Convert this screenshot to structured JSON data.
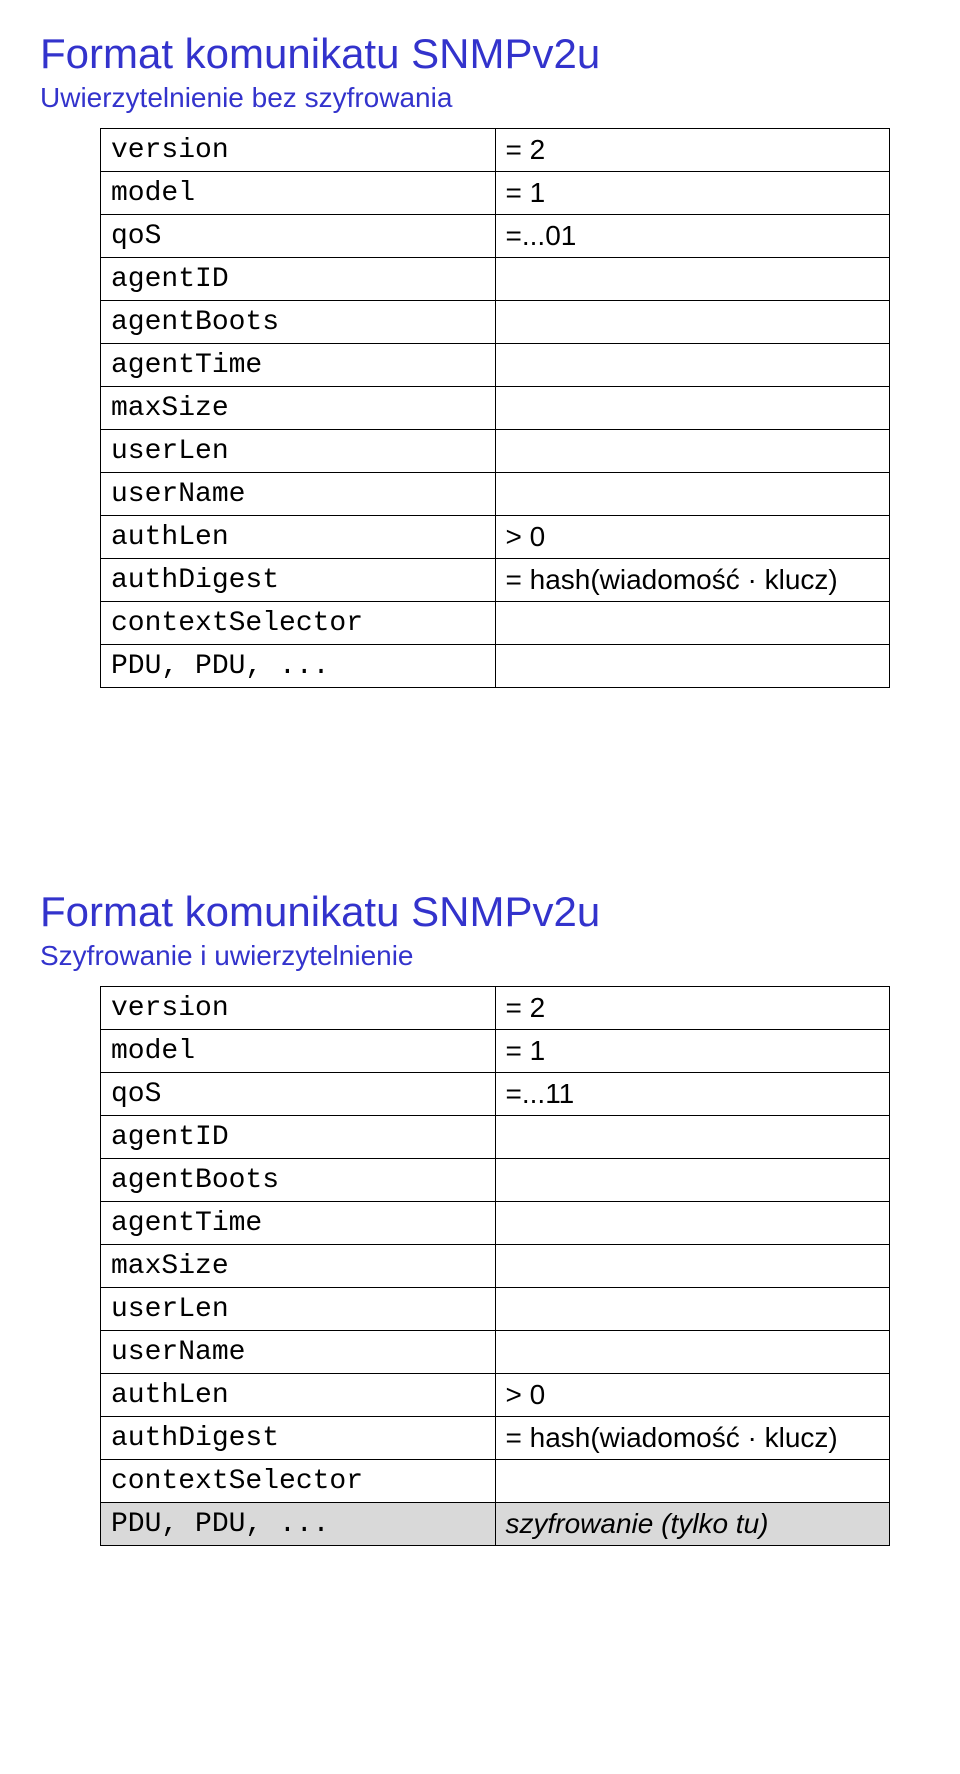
{
  "section1": {
    "title": "Format komunikatu SNMPv2u",
    "subtitle": "Uwierzytelnienie bez szyfrowania",
    "rows": [
      {
        "field": "version",
        "value": "= 2"
      },
      {
        "field": "model",
        "value": "= 1"
      },
      {
        "field": "qoS",
        "value": "=...01"
      },
      {
        "field": "agentID",
        "value": ""
      },
      {
        "field": "agentBoots",
        "value": ""
      },
      {
        "field": "agentTime",
        "value": ""
      },
      {
        "field": "maxSize",
        "value": ""
      },
      {
        "field": "userLen",
        "value": ""
      },
      {
        "field": "userName",
        "value": ""
      },
      {
        "field": "authLen",
        "value": "> 0"
      },
      {
        "field": "authDigest",
        "value": "= hash(wiadomość · klucz)"
      },
      {
        "field": "contextSelector",
        "value": ""
      },
      {
        "field": "PDU, PDU, ...",
        "value": ""
      }
    ]
  },
  "section2": {
    "title": "Format komunikatu SNMPv2u",
    "subtitle": "Szyfrowanie i uwierzytelnienie",
    "rows": [
      {
        "field": "version",
        "value": "= 2",
        "shaded": false
      },
      {
        "field": "model",
        "value": "= 1",
        "shaded": false
      },
      {
        "field": "qoS",
        "value": "=...11",
        "shaded": false
      },
      {
        "field": "agentID",
        "value": "",
        "shaded": false
      },
      {
        "field": "agentBoots",
        "value": "",
        "shaded": false
      },
      {
        "field": "agentTime",
        "value": "",
        "shaded": false
      },
      {
        "field": "maxSize",
        "value": "",
        "shaded": false
      },
      {
        "field": "userLen",
        "value": "",
        "shaded": false
      },
      {
        "field": "userName",
        "value": "",
        "shaded": false
      },
      {
        "field": "authLen",
        "value": "> 0",
        "shaded": false
      },
      {
        "field": "authDigest",
        "value": "= hash(wiadomość · klucz)",
        "shaded": false
      },
      {
        "field": "contextSelector",
        "value": "",
        "shaded": false
      },
      {
        "field": "PDU, PDU, ...",
        "value": "szyfrowanie (tylko tu)",
        "shaded": true,
        "valueItalic": true
      }
    ]
  }
}
